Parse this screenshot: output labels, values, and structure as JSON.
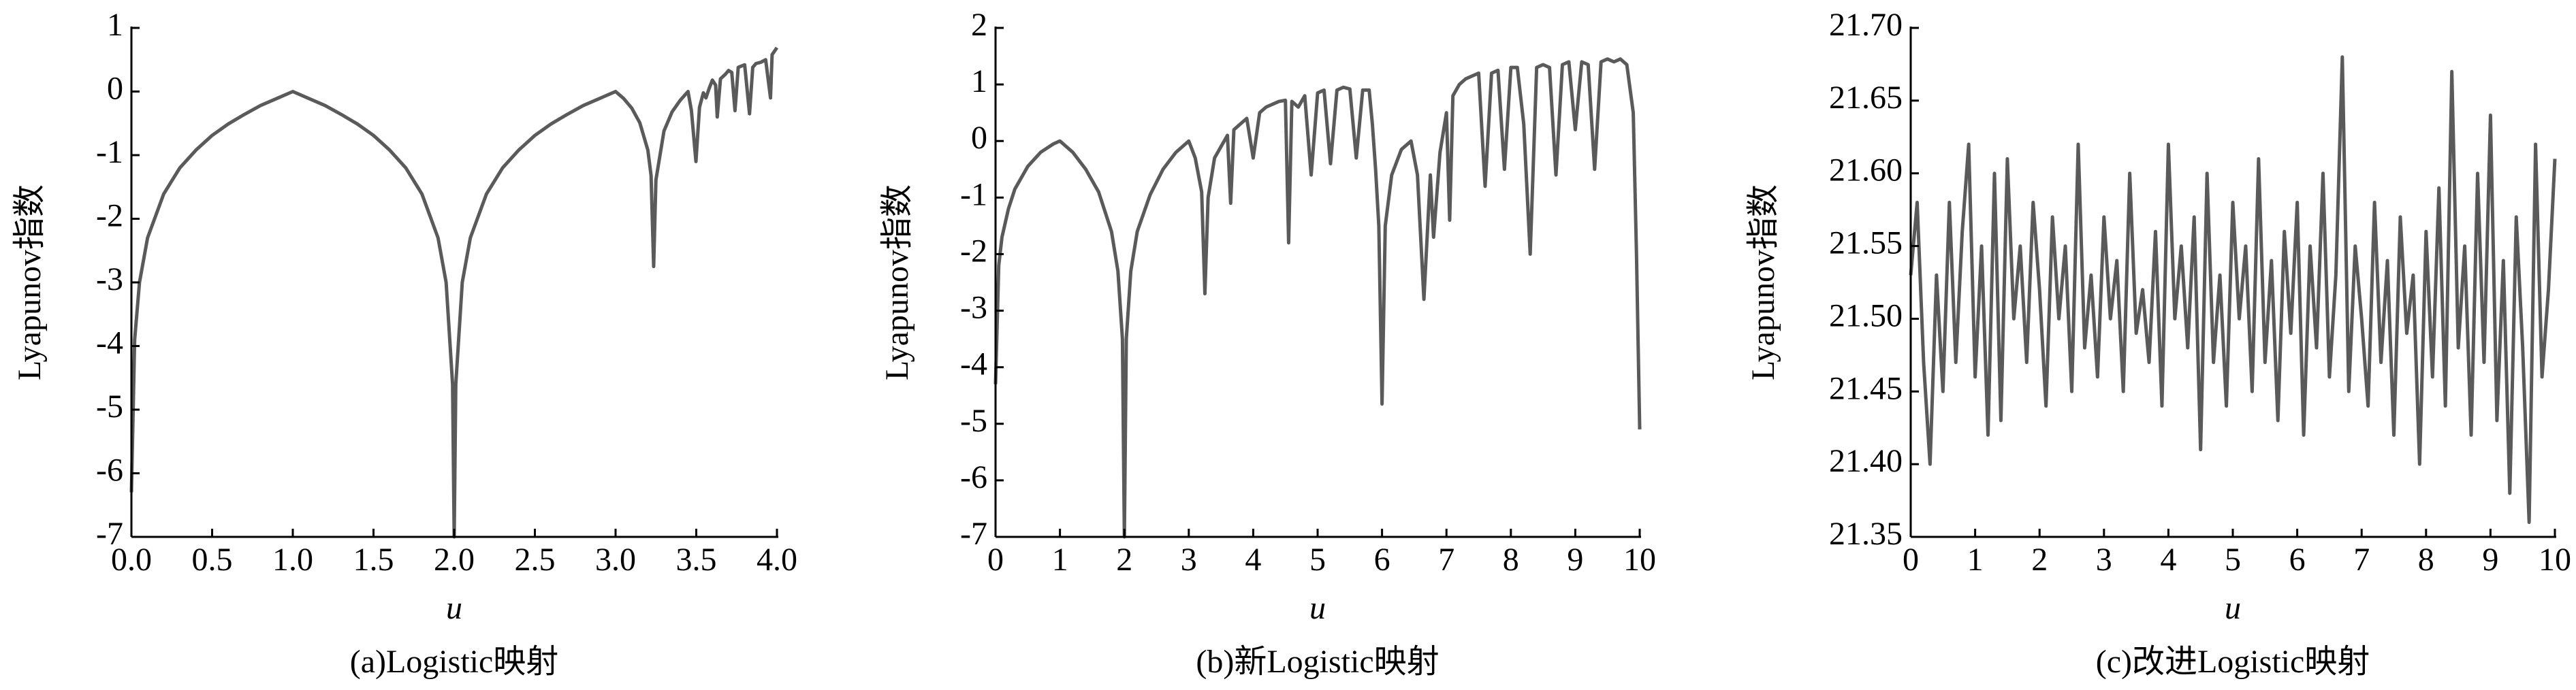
{
  "chart_data": [
    {
      "type": "line",
      "caption": "(a)Logistic映射",
      "xlabel": "u",
      "ylabel": "Lyapunov指数",
      "xlim": [
        0,
        4
      ],
      "ylim": [
        -7,
        1
      ],
      "xticks": [
        {
          "value": 0,
          "label": "0.0"
        },
        0.5,
        {
          "value": 1,
          "label": "1.0"
        },
        1.5,
        {
          "value": 2,
          "label": "2.0"
        },
        2.5,
        {
          "value": 3,
          "label": "3.0"
        },
        3.5,
        {
          "value": 4,
          "label": "4.0"
        }
      ],
      "yticks": [
        -7,
        -6,
        -5,
        -4,
        -3,
        -2,
        -1,
        0,
        1
      ],
      "x": [
        0,
        0.02,
        0.05,
        0.1,
        0.2,
        0.3,
        0.4,
        0.5,
        0.6,
        0.7,
        0.8,
        0.9,
        1.0,
        1.1,
        1.2,
        1.3,
        1.4,
        1.5,
        1.6,
        1.7,
        1.8,
        1.9,
        1.95,
        1.99,
        2.0,
        2.01,
        2.05,
        2.1,
        2.2,
        2.3,
        2.4,
        2.5,
        2.6,
        2.7,
        2.8,
        2.9,
        3.0,
        3.05,
        3.1,
        3.15,
        3.2,
        3.22,
        3.236,
        3.25,
        3.3,
        3.35,
        3.4,
        3.449,
        3.47,
        3.498,
        3.52,
        3.544,
        3.56,
        3.58,
        3.6,
        3.62,
        3.63,
        3.65,
        3.68,
        3.7,
        3.72,
        3.74,
        3.76,
        3.8,
        3.83,
        3.85,
        3.87,
        3.9,
        3.93,
        3.96,
        3.97,
        4.0
      ],
      "series": [
        {
          "color": "#5a5a5a",
          "values": [
            -6.3,
            -3.9,
            -3.0,
            -2.3,
            -1.61,
            -1.2,
            -0.92,
            -0.69,
            -0.51,
            -0.36,
            -0.22,
            -0.11,
            0,
            -0.11,
            -0.22,
            -0.36,
            -0.51,
            -0.69,
            -0.92,
            -1.2,
            -1.61,
            -2.3,
            -3.0,
            -4.6,
            -7,
            -4.6,
            -3.0,
            -2.3,
            -1.61,
            -1.2,
            -0.92,
            -0.69,
            -0.51,
            -0.36,
            -0.22,
            -0.11,
            0,
            -0.11,
            -0.26,
            -0.49,
            -0.92,
            -1.32,
            -2.75,
            -1.39,
            -0.62,
            -0.32,
            -0.14,
            0,
            -0.3,
            -1.1,
            -0.25,
            -0.02,
            -0.1,
            0.05,
            0.18,
            0.1,
            -0.4,
            0.2,
            0.27,
            0.33,
            0.3,
            -0.3,
            0.38,
            0.42,
            -0.35,
            0.38,
            0.44,
            0.46,
            0.5,
            -0.1,
            0.58,
            0.69
          ]
        }
      ]
    },
    {
      "type": "line",
      "caption": "(b)新Logistic映射",
      "xlabel": "u",
      "ylabel": "Lyapunov指数",
      "xlim": [
        0,
        10
      ],
      "ylim": [
        -7,
        2
      ],
      "xticks": [
        0,
        1,
        2,
        3,
        4,
        5,
        6,
        7,
        8,
        9,
        10
      ],
      "yticks": [
        -7,
        -6,
        -5,
        -4,
        -3,
        -2,
        -1,
        0,
        1,
        2
      ],
      "x": [
        0,
        0.05,
        0.1,
        0.2,
        0.3,
        0.5,
        0.7,
        0.9,
        1.0,
        1.2,
        1.4,
        1.6,
        1.8,
        1.9,
        1.97,
        2.0,
        2.03,
        2.1,
        2.2,
        2.4,
        2.6,
        2.8,
        3.0,
        3.1,
        3.2,
        3.25,
        3.3,
        3.4,
        3.5,
        3.6,
        3.65,
        3.7,
        3.8,
        3.9,
        4.0,
        4.1,
        4.2,
        4.3,
        4.4,
        4.5,
        4.55,
        4.6,
        4.7,
        4.8,
        4.9,
        5.0,
        5.1,
        5.2,
        5.3,
        5.4,
        5.5,
        5.6,
        5.7,
        5.8,
        5.85,
        5.9,
        5.95,
        6.0,
        6.05,
        6.15,
        6.3,
        6.45,
        6.55,
        6.65,
        6.75,
        6.8,
        6.9,
        7.0,
        7.05,
        7.1,
        7.2,
        7.3,
        7.4,
        7.5,
        7.6,
        7.7,
        7.8,
        7.9,
        8.0,
        8.1,
        8.2,
        8.3,
        8.4,
        8.5,
        8.6,
        8.7,
        8.8,
        8.9,
        9.0,
        9.1,
        9.2,
        9.3,
        9.4,
        9.5,
        9.6,
        9.7,
        9.8,
        9.9,
        9.95,
        10.0
      ],
      "series": [
        {
          "color": "#5a5a5a",
          "values": [
            -4.3,
            -2.2,
            -1.7,
            -1.2,
            -0.85,
            -0.45,
            -0.2,
            -0.05,
            0,
            -0.2,
            -0.5,
            -0.9,
            -1.6,
            -2.3,
            -3.5,
            -7,
            -3.5,
            -2.3,
            -1.6,
            -0.95,
            -0.5,
            -0.2,
            0,
            -0.3,
            -0.9,
            -2.7,
            -1.0,
            -0.3,
            -0.1,
            0.1,
            -1.1,
            0.2,
            0.3,
            0.4,
            -0.3,
            0.5,
            0.6,
            0.65,
            0.7,
            0.72,
            -1.8,
            0.7,
            0.6,
            0.8,
            -0.6,
            0.85,
            0.9,
            -0.4,
            0.9,
            0.95,
            0.92,
            -0.3,
            0.9,
            0.9,
            0.3,
            -0.5,
            -1.5,
            -4.65,
            -1.5,
            -0.6,
            -0.15,
            0,
            -0.6,
            -2.8,
            -0.6,
            -1.7,
            -0.2,
            0.5,
            -1.4,
            0.8,
            1.0,
            1.1,
            1.15,
            1.2,
            -0.8,
            1.2,
            1.25,
            -0.5,
            1.3,
            1.3,
            0.3,
            -2.0,
            1.3,
            1.35,
            1.3,
            -0.6,
            1.35,
            1.4,
            0.2,
            1.4,
            1.35,
            -0.5,
            1.4,
            1.45,
            1.4,
            1.45,
            1.35,
            0.5,
            -2.0,
            -5.1
          ]
        }
      ]
    },
    {
      "type": "line",
      "caption": "(c)改进Logistic映射",
      "xlabel": "u",
      "ylabel": "Lyapunov指数",
      "xlim": [
        0,
        10
      ],
      "ylim": [
        21.35,
        21.7
      ],
      "xticks": [
        0,
        1,
        2,
        3,
        4,
        5,
        6,
        7,
        8,
        9,
        10
      ],
      "yticks": [
        21.35,
        {
          "value": 21.4,
          "label": "21.40"
        },
        21.45,
        {
          "value": 21.5,
          "label": "21.50"
        },
        21.55,
        {
          "value": 21.6,
          "label": "21.60"
        },
        21.65,
        {
          "value": 21.7,
          "label": "21.70"
        }
      ],
      "x": [
        0,
        0.1,
        0.2,
        0.3,
        0.4,
        0.5,
        0.6,
        0.7,
        0.8,
        0.9,
        1.0,
        1.1,
        1.2,
        1.3,
        1.4,
        1.5,
        1.6,
        1.7,
        1.8,
        1.9,
        2.0,
        2.1,
        2.2,
        2.3,
        2.4,
        2.5,
        2.6,
        2.7,
        2.8,
        2.9,
        3.0,
        3.1,
        3.2,
        3.3,
        3.4,
        3.5,
        3.6,
        3.7,
        3.8,
        3.9,
        4.0,
        4.1,
        4.2,
        4.3,
        4.4,
        4.5,
        4.6,
        4.7,
        4.8,
        4.9,
        5.0,
        5.1,
        5.2,
        5.3,
        5.4,
        5.5,
        5.6,
        5.7,
        5.8,
        5.9,
        6.0,
        6.1,
        6.2,
        6.3,
        6.4,
        6.5,
        6.6,
        6.7,
        6.8,
        6.9,
        7.0,
        7.1,
        7.2,
        7.3,
        7.4,
        7.5,
        7.6,
        7.7,
        7.8,
        7.9,
        8.0,
        8.1,
        8.2,
        8.3,
        8.4,
        8.5,
        8.6,
        8.7,
        8.8,
        8.9,
        9.0,
        9.1,
        9.2,
        9.3,
        9.4,
        9.5,
        9.6,
        9.7,
        9.8,
        9.9,
        10.0
      ],
      "series": [
        {
          "color": "#5a5a5a",
          "values": [
            21.53,
            21.58,
            21.47,
            21.4,
            21.53,
            21.45,
            21.58,
            21.47,
            21.56,
            21.62,
            21.46,
            21.55,
            21.42,
            21.6,
            21.43,
            21.61,
            21.5,
            21.55,
            21.47,
            21.58,
            21.52,
            21.44,
            21.57,
            21.5,
            21.55,
            21.45,
            21.62,
            21.48,
            21.53,
            21.46,
            21.57,
            21.5,
            21.54,
            21.45,
            21.6,
            21.49,
            21.52,
            21.47,
            21.56,
            21.44,
            21.62,
            21.5,
            21.55,
            21.48,
            21.57,
            21.41,
            21.6,
            21.47,
            21.53,
            21.44,
            21.58,
            21.5,
            21.55,
            21.45,
            21.61,
            21.47,
            21.54,
            21.43,
            21.56,
            21.49,
            21.58,
            21.42,
            21.55,
            21.48,
            21.6,
            21.46,
            21.53,
            21.68,
            21.45,
            21.55,
            21.5,
            21.44,
            21.58,
            21.47,
            21.54,
            21.42,
            21.57,
            21.49,
            21.53,
            21.4,
            21.56,
            21.46,
            21.59,
            21.44,
            21.67,
            21.48,
            21.55,
            21.42,
            21.6,
            21.47,
            21.64,
            21.43,
            21.54,
            21.38,
            21.57,
            21.48,
            21.36,
            21.62,
            21.46,
            21.52,
            21.61
          ]
        }
      ]
    }
  ]
}
